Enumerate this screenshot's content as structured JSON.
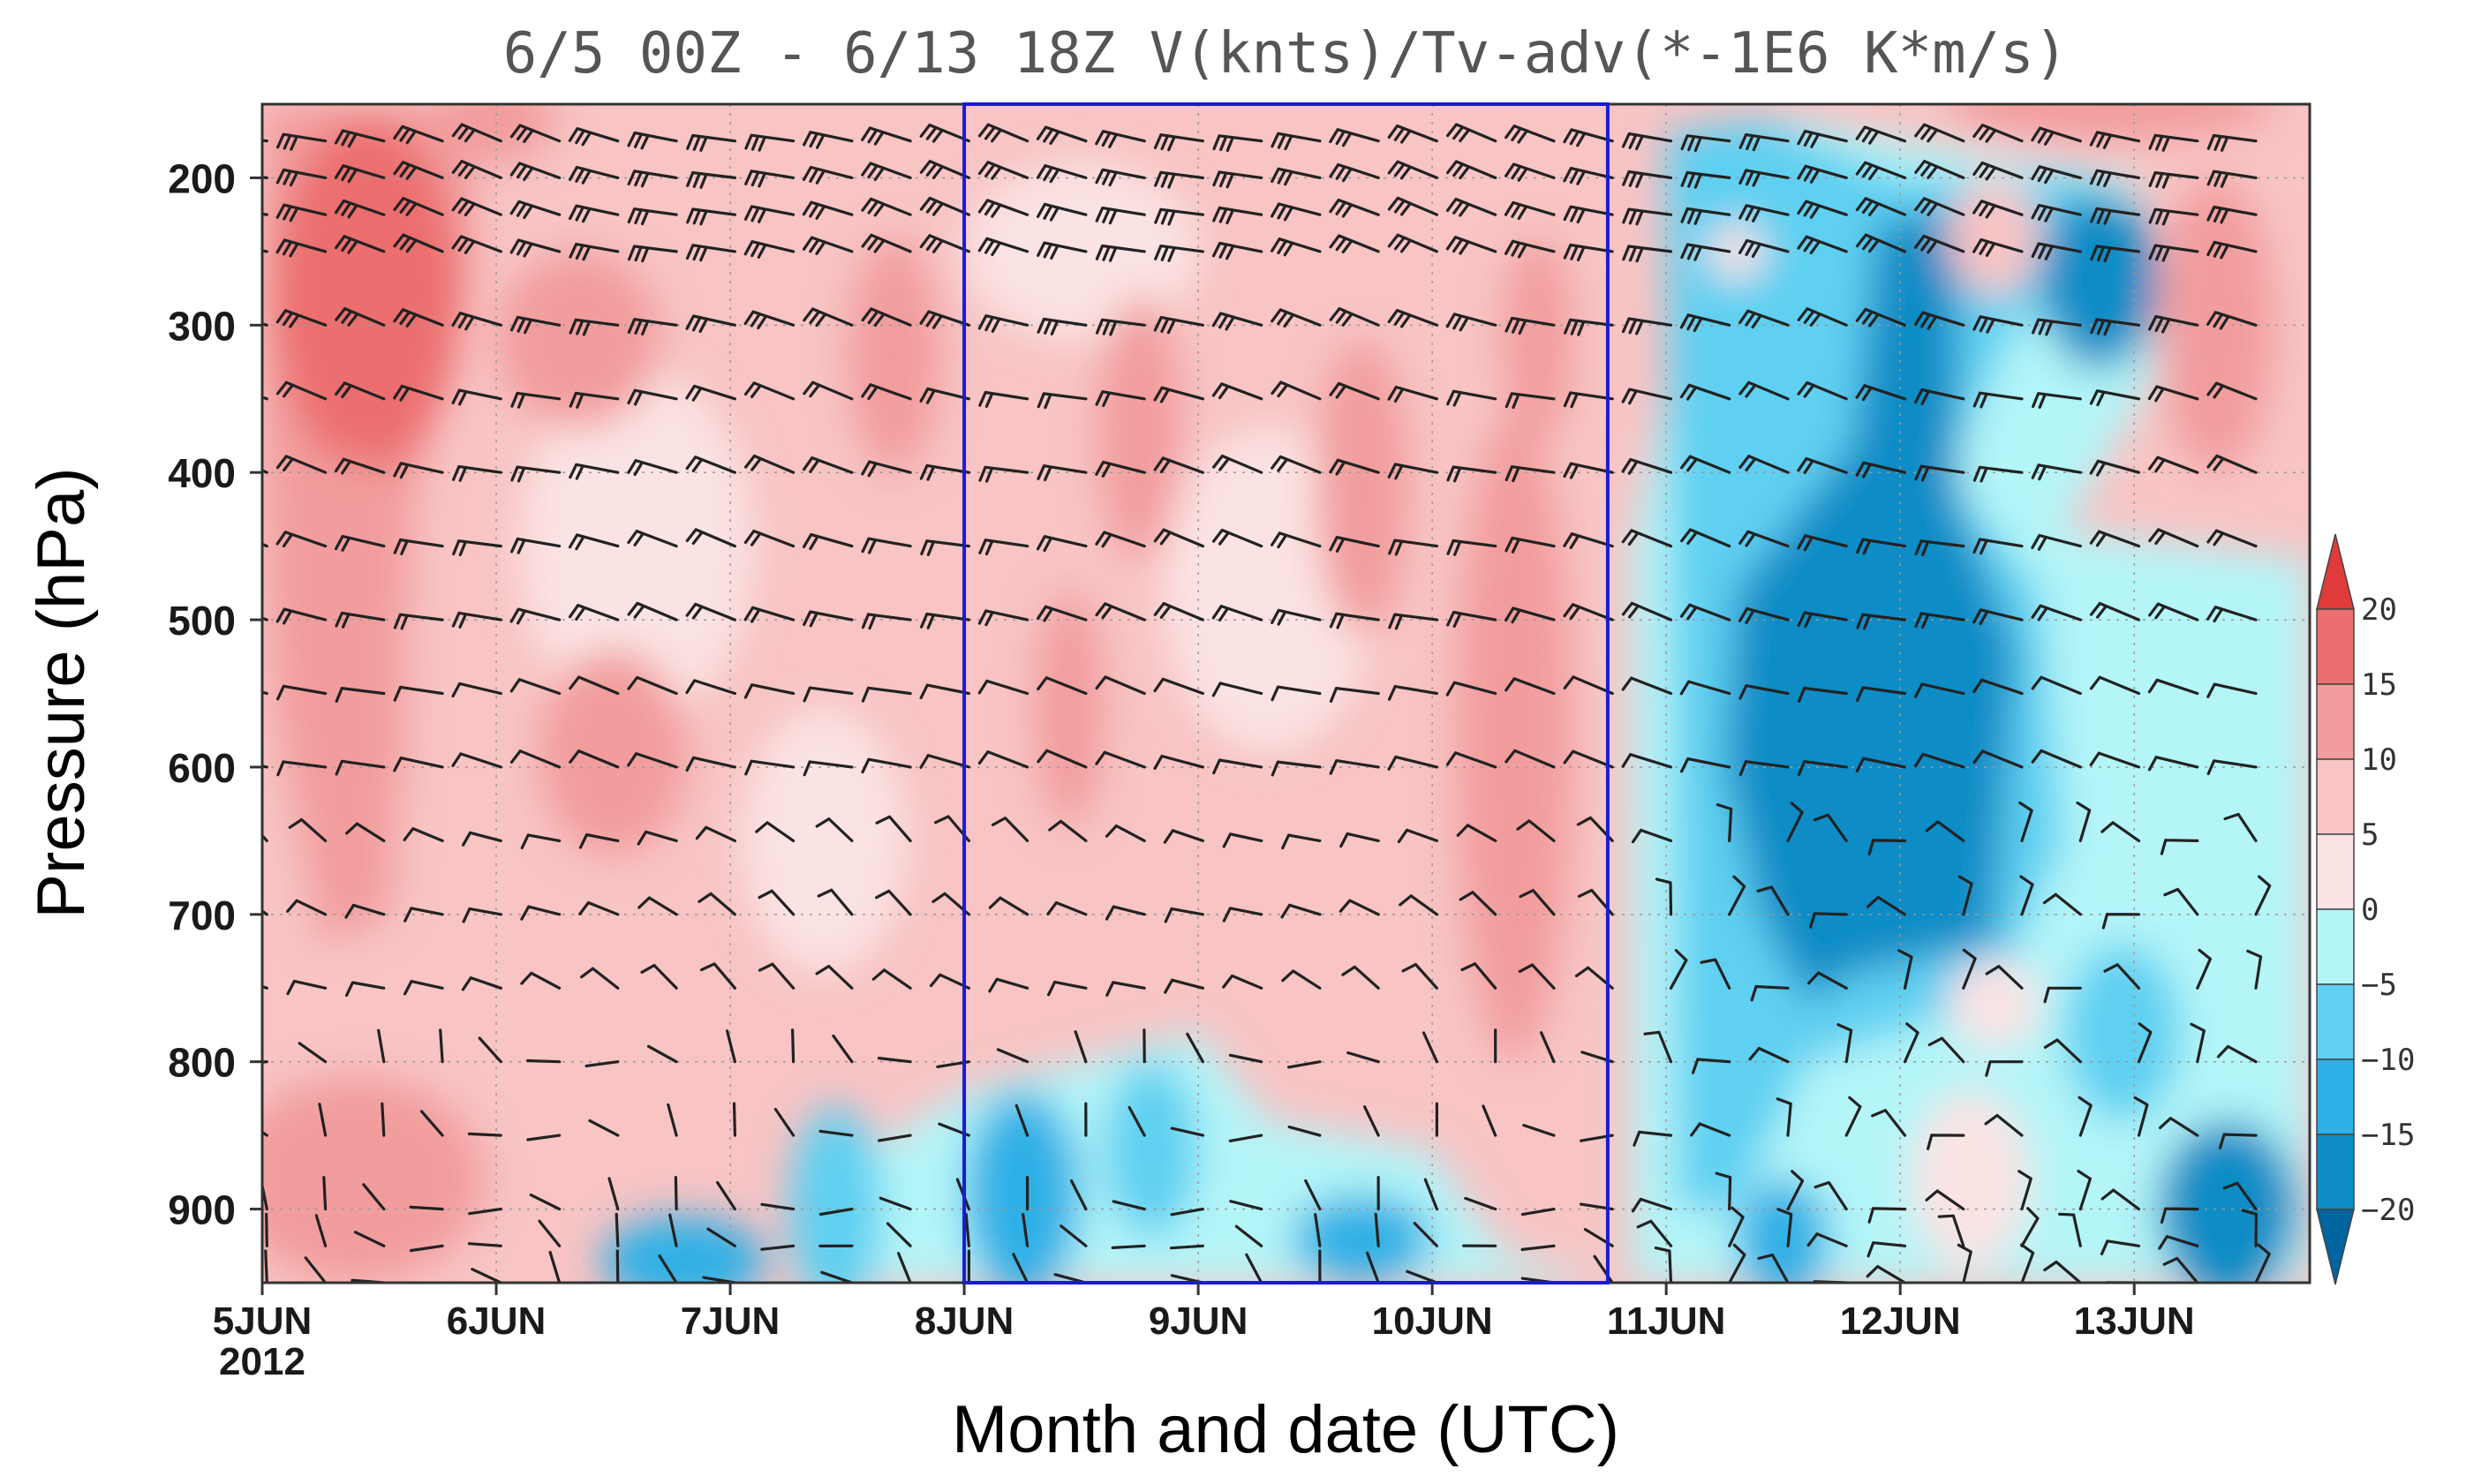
{
  "chart_data": {
    "type": "heatmap",
    "title": "6/5 00Z - 6/13 18Z V(knts)/Tv-adv(*-1E6 K*m/s)",
    "xlabel": "Month and date (UTC)",
    "ylabel": "Pressure (hPa)",
    "x_ticks": [
      {
        "label": "5JUN",
        "sublabel": "2012",
        "day": 5
      },
      {
        "label": "6JUN",
        "day": 6
      },
      {
        "label": "7JUN",
        "day": 7
      },
      {
        "label": "8JUN",
        "day": 8
      },
      {
        "label": "9JUN",
        "day": 9
      },
      {
        "label": "10JUN",
        "day": 10
      },
      {
        "label": "11JUN",
        "day": 11
      },
      {
        "label": "12JUN",
        "day": 12
      },
      {
        "label": "13JUN",
        "day": 13
      }
    ],
    "xlim_days": [
      5.0,
      13.75
    ],
    "y_ticks": [
      200,
      300,
      400,
      500,
      600,
      700,
      800,
      900
    ],
    "ylim_hPa": [
      150,
      950
    ],
    "highlight_box_days": [
      8.0,
      10.75
    ],
    "colorbar": {
      "levels": [
        -20,
        -15,
        -10,
        -5,
        0,
        5,
        10,
        15,
        20
      ],
      "labels": [
        "20",
        "15",
        "10",
        "5",
        "0",
        "−5",
        "−10",
        "−15",
        "−20"
      ],
      "colors": [
        "#00649e",
        "#0d8cc6",
        "#2eb0e6",
        "#5fd0f1",
        "#b4f5f8",
        "#fbe3e3",
        "#f8c4c4",
        "#f29d9d",
        "#ec6e6e",
        "#e03b3b"
      ]
    },
    "field_summary": [
      {
        "region": "5-8 JUN, 150-950 hPa",
        "sign": "positive",
        "peak": 15
      },
      {
        "region": "8-10.75 JUN, 150-750 hPa",
        "sign": "positive",
        "peak": 15
      },
      {
        "region": "8-10.75 JUN, 750-950 hPa",
        "sign": "negative",
        "peak": -15
      },
      {
        "region": "11-13 JUN, 200-950 hPa",
        "sign": "negative",
        "peak": -20
      }
    ],
    "wind_barb_levels_hPa": [
      175,
      200,
      225,
      250,
      300,
      350,
      400,
      450,
      500,
      550,
      600,
      650,
      700,
      750,
      800,
      850,
      900,
      925,
      950
    ],
    "wind_barb_interval_hours": 6
  }
}
